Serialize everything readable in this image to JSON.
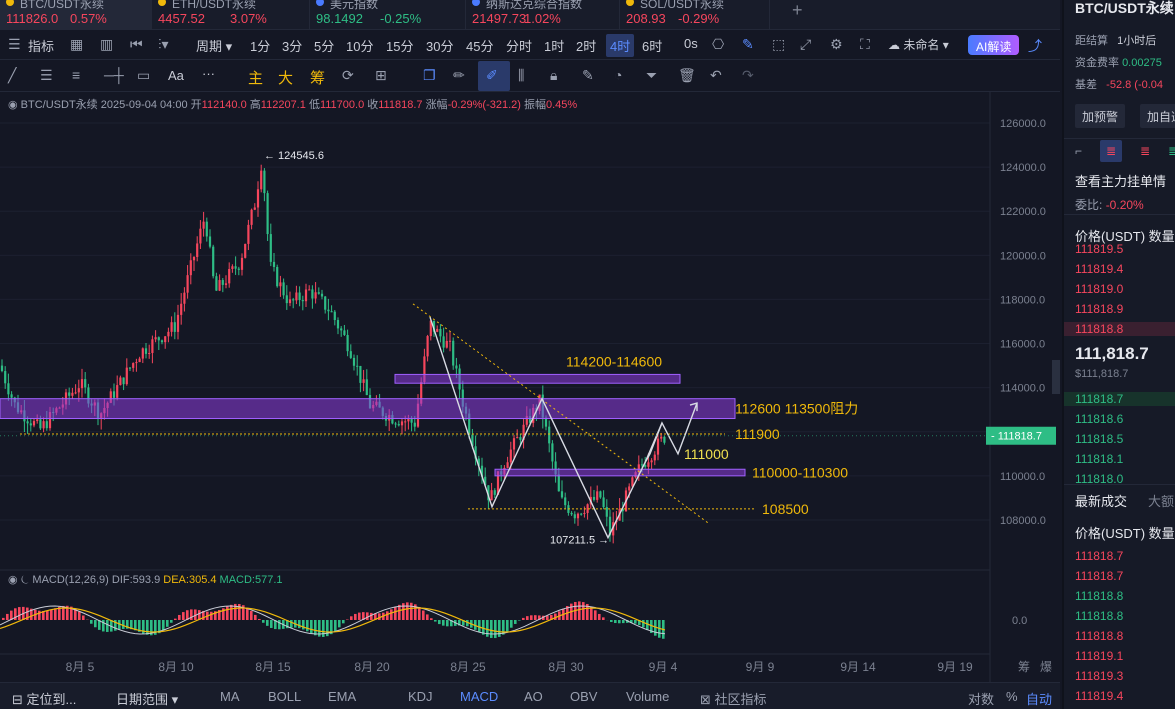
{
  "tickers": [
    {
      "name": "BTC/USDT永续",
      "price": "111826.0",
      "change": "0.57%",
      "dir": "red"
    },
    {
      "name": "ETH/USDT永续",
      "price": "4457.52",
      "change": "3.07%",
      "dir": "red"
    },
    {
      "name": "美元指数",
      "price": "98.1492",
      "change": "-0.25%",
      "dir": "green"
    },
    {
      "name": "纳斯达克综合指数",
      "price": "21497.73",
      "change": "1.02%",
      "dir": "red"
    },
    {
      "name": "SOL/USDT永续",
      "price": "208.93",
      "change": "-0.29%",
      "dir": "red"
    }
  ],
  "add_tab": "+",
  "toolbar1": {
    "indicator": "指标",
    "period": "周期",
    "timeframes": [
      "1分",
      "3分",
      "5分",
      "10分",
      "15分",
      "30分",
      "45分",
      "分时",
      "1时",
      "2时",
      "4时",
      "6时",
      "0s"
    ],
    "active_timeframe": "4时",
    "layout_name": "未命名",
    "ai": "AI解读"
  },
  "toolbar2": {
    "text_tool": "Aa",
    "more": "···",
    "main": "主",
    "large": "大",
    "fund": "筹"
  },
  "chart": {
    "legend": {
      "symbol": "BTC/USDT永续",
      "date": "2025-09-04 04:00",
      "open_label": "开",
      "open": "112140.0",
      "high_label": "高",
      "high": "112207.1",
      "low_label": "低",
      "low": "111700.0",
      "close_label": "收",
      "close": "111818.7",
      "chg_label": "涨幅",
      "chg": "-0.29%(-321.2)",
      "amp_label": "振幅",
      "amp": "0.45%"
    },
    "y_ticks": [
      "126000.0",
      "124000.0",
      "122000.0",
      "120000.0",
      "118000.0",
      "116000.0",
      "114000.0",
      "112000.0",
      "110000.0",
      "108000.0"
    ],
    "last_price": "111818.7",
    "x_ticks": [
      "8月 5",
      "8月 10",
      "8月 15",
      "8月 20",
      "8月 25",
      "8月 30",
      "9月 4",
      "9月 9",
      "9月 14",
      "9月 19"
    ],
    "high_mark": "124545.6",
    "low_mark": "107211.5",
    "annotations": {
      "zone1": "114200-114600",
      "zone2": "112600 113500阻力",
      "line1": "111900",
      "line2": "111000",
      "zone3": "110000-110300",
      "line3": "108500"
    },
    "macd": {
      "title": "MACD(12,26,9)",
      "dif": "DIF:593.9",
      "dea": "DEA:305.4",
      "macd": "MACD:577.1",
      "zero": "0.0"
    },
    "x_extra": [
      "筹",
      "爆"
    ]
  },
  "chart_data": {
    "type": "candlestick",
    "title": "BTC/USDT永续 4H",
    "ylim": [
      107000,
      126500
    ],
    "key_points": [
      {
        "label": "high",
        "value": 124545.6
      },
      {
        "label": "low",
        "value": 107211.5
      },
      {
        "label": "last",
        "value": 111818.7
      }
    ],
    "levels": [
      114200,
      114600,
      112600,
      113500,
      111900,
      111000,
      110000,
      110300,
      108500
    ]
  },
  "bottombar": {
    "locate": "定位到...",
    "range": "日期范围",
    "indicators": [
      "MA",
      "BOLL",
      "EMA",
      "KDJ",
      "MACD",
      "AO",
      "OBV",
      "Volume"
    ],
    "active": "MACD",
    "community": "社区指标",
    "log": "对数",
    "pct": "%",
    "auto": "自动"
  },
  "rightpanel": {
    "symbol": "BTC/USDT永续",
    "settle_label": "距结算",
    "settle_value": "1小时后",
    "funding_label": "资金费率",
    "funding_value": "0.00275",
    "basis_label": "基差",
    "basis_value": "-52.8 (-0.04",
    "alert_btn": "加预警",
    "watch_btn": "加自选",
    "orderbook_title": "查看主力挂单情",
    "ratio_label": "委比:",
    "ratio_value": "-0.20%",
    "col_price": "价格(USDT)",
    "col_qty": "数量",
    "asks": [
      "111819.5",
      "111819.4",
      "111819.0",
      "111818.9",
      "111818.8"
    ],
    "mid_price": "111,818.7",
    "mid_usd": "$111,818.7",
    "bids": [
      "111818.7",
      "111818.6",
      "111818.5",
      "111818.1",
      "111818.0"
    ],
    "trades_tab": "最新成交",
    "big_tab": "大额",
    "trades": [
      {
        "p": "111818.7",
        "d": "red"
      },
      {
        "p": "111818.7",
        "d": "red"
      },
      {
        "p": "111818.8",
        "d": "green"
      },
      {
        "p": "111818.8",
        "d": "green"
      },
      {
        "p": "111818.8",
        "d": "red"
      },
      {
        "p": "111819.1",
        "d": "red"
      },
      {
        "p": "111819.3",
        "d": "red"
      },
      {
        "p": "111819.4",
        "d": "red"
      }
    ]
  }
}
